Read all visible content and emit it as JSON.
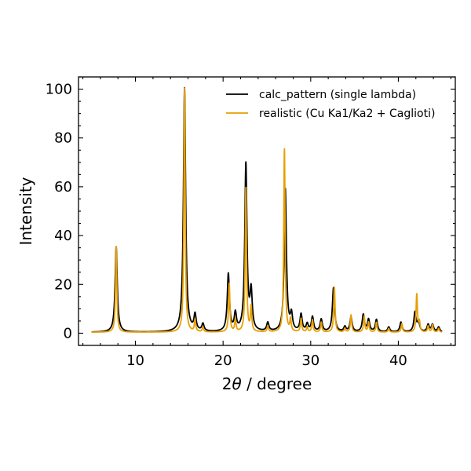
{
  "chart_data": {
    "type": "line",
    "title": "",
    "xlabel_prefix": "2",
    "xlabel_symbol": "θ",
    "xlabel_suffix": " / degree",
    "ylabel": "Intensity",
    "xlim": [
      3.5,
      46.5
    ],
    "ylim": [
      -5,
      105
    ],
    "x_ticks": [
      10,
      20,
      30,
      40
    ],
    "y_ticks": [
      0,
      20,
      40,
      60,
      80,
      100
    ],
    "grid": false,
    "legend_position": "top-right",
    "series": [
      {
        "name": "calc_pattern (single lambda)",
        "color": "#000000",
        "peak_width": 0.15,
        "peaks": [
          [
            7.8,
            35
          ],
          [
            15.6,
            100
          ],
          [
            16.8,
            6.5
          ],
          [
            17.7,
            3
          ],
          [
            20.6,
            23.5
          ],
          [
            21.4,
            7
          ],
          [
            22.6,
            68.5
          ],
          [
            23.2,
            15.5
          ],
          [
            25.1,
            3.5
          ],
          [
            27.1,
            58.5
          ],
          [
            27.8,
            6.5
          ],
          [
            28.9,
            7
          ],
          [
            29.6,
            3
          ],
          [
            30.2,
            6
          ],
          [
            31.2,
            5
          ],
          [
            32.6,
            18
          ],
          [
            33.9,
            2
          ],
          [
            34.6,
            6
          ],
          [
            36.0,
            7
          ],
          [
            36.6,
            5
          ],
          [
            37.5,
            5
          ],
          [
            38.9,
            2
          ],
          [
            40.3,
            4
          ],
          [
            41.9,
            8
          ],
          [
            42.3,
            4
          ],
          [
            43.4,
            3
          ],
          [
            43.9,
            3
          ],
          [
            44.6,
            2
          ]
        ]
      },
      {
        "name": "realistic (Cu Ka1/Ka2 + Caglioti)",
        "color": "#E69F00",
        "peak_width": 0.09,
        "peaks": [
          [
            7.8,
            35
          ],
          [
            15.6,
            100
          ],
          [
            16.8,
            5
          ],
          [
            17.7,
            2
          ],
          [
            20.7,
            20
          ],
          [
            21.4,
            5
          ],
          [
            22.6,
            59
          ],
          [
            23.2,
            10
          ],
          [
            25.1,
            2.5
          ],
          [
            27.0,
            75
          ],
          [
            27.7,
            5
          ],
          [
            28.9,
            5.5
          ],
          [
            29.6,
            2
          ],
          [
            30.2,
            5
          ],
          [
            31.2,
            4
          ],
          [
            32.7,
            18.5
          ],
          [
            33.9,
            1.5
          ],
          [
            34.6,
            7
          ],
          [
            36.1,
            6.5
          ],
          [
            36.6,
            4
          ],
          [
            37.5,
            4
          ],
          [
            38.9,
            1.5
          ],
          [
            40.4,
            3.5
          ],
          [
            42.1,
            15.5
          ],
          [
            42.4,
            4
          ],
          [
            43.4,
            2.5
          ],
          [
            43.9,
            3
          ],
          [
            44.6,
            1.5
          ]
        ]
      }
    ]
  }
}
